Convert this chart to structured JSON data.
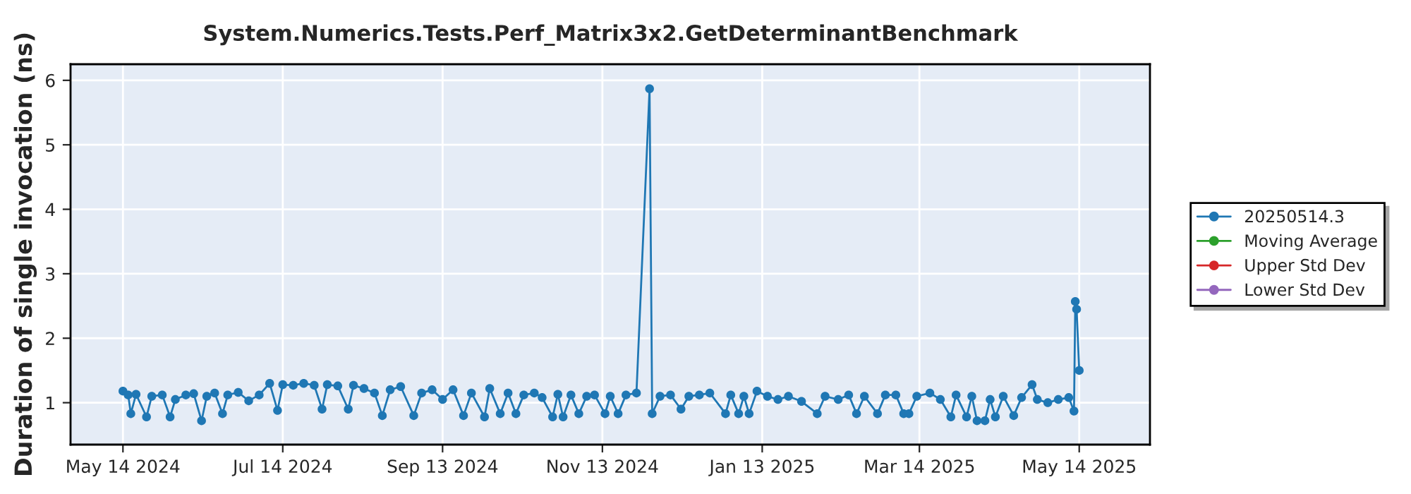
{
  "chart_data": {
    "type": "line",
    "title": "System.Numerics.Tests.Perf_Matrix3x2.GetDeterminantBenchmark",
    "ylabel": "Duration of single invocation (ns)",
    "xlim": [
      "2024-04-24",
      "2025-06-10"
    ],
    "xticks": [
      {
        "value": "2024-05-14",
        "label": "May 14 2024"
      },
      {
        "value": "2024-07-14",
        "label": "Jul 14 2024"
      },
      {
        "value": "2024-09-13",
        "label": "Sep 13 2024"
      },
      {
        "value": "2024-11-13",
        "label": "Nov 13 2024"
      },
      {
        "value": "2025-01-13",
        "label": "Jan 13 2025"
      },
      {
        "value": "2025-03-14",
        "label": "Mar 14 2025"
      },
      {
        "value": "2025-05-14",
        "label": "May 14 2025"
      }
    ],
    "ylim": [
      0.35,
      6.25
    ],
    "yticks": [
      1,
      2,
      3,
      4,
      5,
      6
    ],
    "grid": true,
    "legend": "right",
    "marker": "circle",
    "line_style": "solid",
    "series": [
      {
        "name": "20250514.3",
        "color": "#1f77b4",
        "x": [
          "2024-05-14",
          "2024-05-16",
          "2024-05-17",
          "2024-05-19",
          "2024-05-23",
          "2024-05-25",
          "2024-05-29",
          "2024-06-01",
          "2024-06-03",
          "2024-06-07",
          "2024-06-10",
          "2024-06-13",
          "2024-06-15",
          "2024-06-18",
          "2024-06-21",
          "2024-06-23",
          "2024-06-27",
          "2024-07-01",
          "2024-07-05",
          "2024-07-09",
          "2024-07-12",
          "2024-07-14",
          "2024-07-18",
          "2024-07-22",
          "2024-07-26",
          "2024-07-29",
          "2024-07-31",
          "2024-08-04",
          "2024-08-08",
          "2024-08-10",
          "2024-08-14",
          "2024-08-18",
          "2024-08-21",
          "2024-08-24",
          "2024-08-28",
          "2024-09-02",
          "2024-09-05",
          "2024-09-09",
          "2024-09-13",
          "2024-09-17",
          "2024-09-21",
          "2024-09-24",
          "2024-09-29",
          "2024-10-01",
          "2024-10-05",
          "2024-10-08",
          "2024-10-11",
          "2024-10-14",
          "2024-10-18",
          "2024-10-21",
          "2024-10-25",
          "2024-10-27",
          "2024-10-29",
          "2024-11-01",
          "2024-11-04",
          "2024-11-07",
          "2024-11-10",
          "2024-11-14",
          "2024-11-16",
          "2024-11-19",
          "2024-11-22",
          "2024-11-26",
          "2024-12-01",
          "2024-12-02",
          "2024-12-05",
          "2024-12-09",
          "2024-12-13",
          "2024-12-16",
          "2024-12-20",
          "2024-12-24",
          "2024-12-30",
          "2025-01-01",
          "2025-01-04",
          "2025-01-06",
          "2025-01-08",
          "2025-01-11",
          "2025-01-15",
          "2025-01-19",
          "2025-01-23",
          "2025-01-28",
          "2025-02-03",
          "2025-02-06",
          "2025-02-11",
          "2025-02-15",
          "2025-02-18",
          "2025-02-21",
          "2025-02-26",
          "2025-03-01",
          "2025-03-05",
          "2025-03-08",
          "2025-03-10",
          "2025-03-13",
          "2025-03-18",
          "2025-03-22",
          "2025-03-26",
          "2025-03-28",
          "2025-04-01",
          "2025-04-03",
          "2025-04-05",
          "2025-04-08",
          "2025-04-10",
          "2025-04-12",
          "2025-04-15",
          "2025-04-19",
          "2025-04-22",
          "2025-04-26",
          "2025-04-28",
          "2025-05-02",
          "2025-05-06",
          "2025-05-10",
          "2025-05-12",
          "2025-05-12T12:00",
          "2025-05-13",
          "2025-05-14"
        ],
        "values": [
          1.18,
          1.12,
          0.83,
          1.13,
          0.78,
          1.1,
          1.12,
          0.78,
          1.05,
          1.12,
          1.14,
          0.72,
          1.1,
          1.15,
          0.83,
          1.12,
          1.16,
          1.03,
          1.12,
          1.3,
          0.88,
          1.28,
          1.27,
          1.3,
          1.27,
          0.9,
          1.28,
          1.26,
          0.9,
          1.27,
          1.22,
          1.15,
          0.8,
          1.2,
          1.25,
          0.8,
          1.15,
          1.2,
          1.05,
          1.2,
          0.8,
          1.15,
          0.78,
          1.22,
          0.83,
          1.15,
          0.83,
          1.12,
          1.15,
          1.08,
          0.78,
          1.13,
          0.78,
          1.12,
          0.83,
          1.1,
          1.12,
          0.83,
          1.1,
          0.83,
          1.12,
          1.15,
          5.87,
          0.83,
          1.1,
          1.12,
          0.9,
          1.1,
          1.12,
          1.15,
          0.83,
          1.12,
          0.83,
          1.1,
          0.83,
          1.18,
          1.1,
          1.05,
          1.1,
          1.02,
          0.83,
          1.1,
          1.05,
          1.12,
          0.83,
          1.1,
          0.83,
          1.12,
          1.12,
          0.83,
          0.83,
          1.1,
          1.15,
          1.05,
          0.78,
          1.12,
          0.78,
          1.1,
          0.72,
          0.72,
          1.05,
          0.78,
          1.1,
          0.8,
          1.08,
          1.28,
          1.05,
          1.0,
          1.05,
          1.08,
          0.87,
          2.57,
          2.45,
          1.5
        ]
      },
      {
        "name": "Moving Average",
        "color": "#2ca02c"
      },
      {
        "name": "Upper Std Dev",
        "color": "#d62728"
      },
      {
        "name": "Lower Std Dev",
        "color": "#9467bd"
      }
    ]
  }
}
